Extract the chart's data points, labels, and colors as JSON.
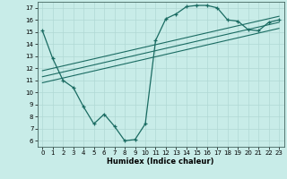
{
  "xlabel": "Humidex (Indice chaleur)",
  "bg_color": "#c8ece8",
  "grid_color": "#b0d8d4",
  "line_color": "#1a6b62",
  "xlim": [
    -0.5,
    23.5
  ],
  "ylim": [
    5.5,
    17.5
  ],
  "xticks": [
    0,
    1,
    2,
    3,
    4,
    5,
    6,
    7,
    8,
    9,
    10,
    11,
    12,
    13,
    14,
    15,
    16,
    17,
    18,
    19,
    20,
    21,
    22,
    23
  ],
  "yticks": [
    6,
    7,
    8,
    9,
    10,
    11,
    12,
    13,
    14,
    15,
    16,
    17
  ],
  "curve1_x": [
    0,
    1,
    2,
    3,
    4,
    5,
    6,
    7,
    8,
    9,
    10,
    11,
    12,
    13,
    14,
    15,
    16,
    17,
    18,
    19,
    20,
    21,
    22,
    23
  ],
  "curve1_y": [
    15.1,
    12.8,
    11.0,
    10.4,
    8.8,
    7.4,
    8.2,
    7.2,
    6.0,
    6.1,
    7.4,
    14.3,
    16.1,
    16.5,
    17.1,
    17.2,
    17.2,
    17.0,
    16.0,
    15.9,
    15.2,
    15.1,
    15.8,
    16.0
  ],
  "line1_x": [
    0,
    23
  ],
  "line1_y": [
    10.8,
    15.3
  ],
  "line2_x": [
    0,
    23
  ],
  "line2_y": [
    11.3,
    15.8
  ],
  "line3_x": [
    0,
    23
  ],
  "line3_y": [
    11.8,
    16.3
  ]
}
